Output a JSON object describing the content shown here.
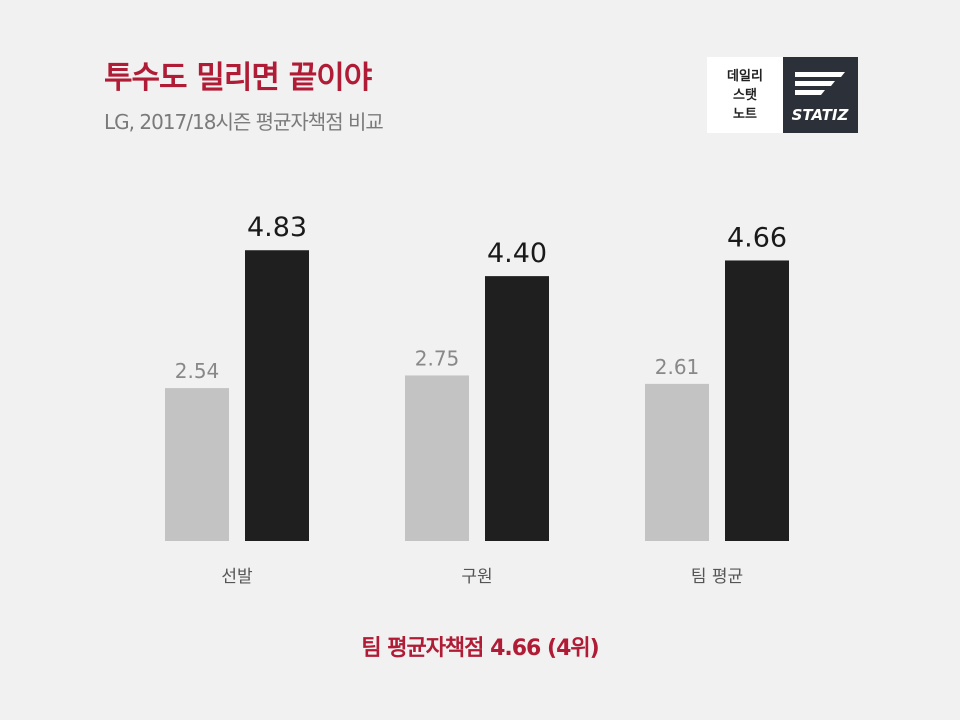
{
  "header": {
    "title": "투수도 밀리면 끝이야",
    "subtitle": "LG, 2017/18시즌 평균자책점 비교"
  },
  "logo": {
    "line1": "데일리",
    "line2": "스탯",
    "line3": "노트",
    "brand": "STATIZ"
  },
  "chart_data": {
    "type": "bar",
    "categories": [
      "선발",
      "구원",
      "팀 평균"
    ],
    "series": [
      {
        "values": [
          2.54,
          2.75,
          2.61
        ]
      },
      {
        "values": [
          4.83,
          4.4,
          4.66
        ]
      }
    ],
    "ylim": [
      0,
      5
    ],
    "grid": false,
    "legend": "none",
    "colors": [
      "#c3c3c3",
      "#1f1f1f"
    ],
    "label_colors": [
      "#888888",
      "#1a1a1a"
    ]
  },
  "footer": {
    "text": "팀 평균자책점 4.66 (4위)"
  },
  "colors": {
    "accent": "#b01c35",
    "background": "#f1f1f1",
    "logo_dark": "#2c3038"
  }
}
